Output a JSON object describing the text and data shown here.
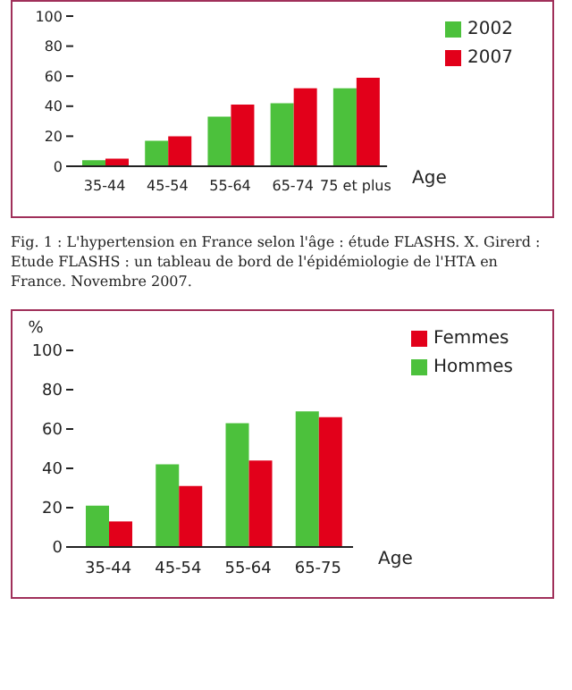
{
  "chart_data": [
    {
      "type": "bar",
      "categories": [
        "35-44",
        "45-54",
        "55-64",
        "65-74",
        "75 et plus"
      ],
      "xlabel": "Age",
      "series": [
        {
          "name": "2002",
          "color": "#4cc13c",
          "values": [
            4,
            17,
            33,
            42,
            52
          ]
        },
        {
          "name": "2007",
          "color": "#e2001a",
          "values": [
            5,
            20,
            41,
            52,
            59
          ]
        }
      ],
      "ylim": [
        0,
        100
      ],
      "yticks": [
        0,
        20,
        40,
        60,
        80,
        100
      ],
      "grid": false,
      "legend": "top right",
      "annotations": [
        "Fig. 1 : L'hypertension en France selon l'âge : étude FLASHS. X. Girerd : Etude FLASHS : un tableau de bord de l'épidémiologie de l'HTA en France. Novembre 2007."
      ]
    },
    {
      "type": "bar",
      "categories": [
        "35-44",
        "45-54",
        "55-64",
        "65-75"
      ],
      "xlabel": "Age",
      "ylabel": "%",
      "series": [
        {
          "name": "Hommes",
          "color": "#4cc13c",
          "values": [
            21,
            42,
            63,
            69
          ]
        },
        {
          "name": "Femmes",
          "color": "#e2001a",
          "values": [
            13,
            31,
            44,
            66
          ]
        }
      ],
      "ylim": [
        0,
        100
      ],
      "yticks": [
        0,
        20,
        40,
        60,
        80,
        100
      ],
      "grid": false,
      "legend": "top right"
    }
  ]
}
